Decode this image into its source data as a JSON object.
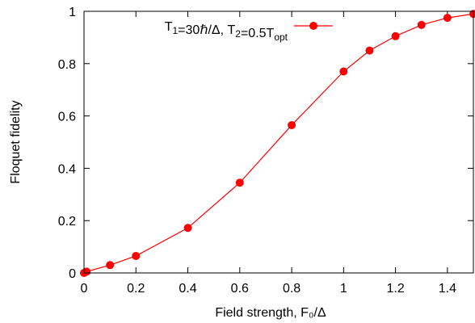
{
  "chart_data": {
    "type": "line",
    "xlabel": "Field strength, F₀/Δ",
    "ylabel": "Floquet fidelity",
    "xlim": [
      0,
      1.5
    ],
    "ylim": [
      0,
      1
    ],
    "x_ticks": [
      0,
      0.2,
      0.4,
      0.6,
      0.8,
      1,
      1.2,
      1.4
    ],
    "x_tick_labels": [
      "0",
      "0.2",
      "0.4",
      "0.6",
      "0.8",
      "1",
      "1.2",
      "1.4"
    ],
    "y_ticks": [
      0,
      0.2,
      0.4,
      0.6,
      0.8,
      1
    ],
    "y_tick_labels": [
      "0",
      "0.2",
      "0.4",
      "0.6",
      "0.8",
      "1"
    ],
    "legend_position": "top",
    "series": [
      {
        "name": "T₁=30ℏ/Δ, T₂=0.5T_opt",
        "color": "#ff0000",
        "marker": "circle",
        "x": [
          0,
          0.01,
          0.1,
          0.2,
          0.4,
          0.6,
          0.8,
          1.0,
          1.1,
          1.2,
          1.3,
          1.4,
          1.5
        ],
        "y": [
          0.0,
          0.005,
          0.03,
          0.065,
          0.172,
          0.345,
          0.565,
          0.77,
          0.85,
          0.905,
          0.948,
          0.975,
          0.99
        ]
      }
    ]
  }
}
